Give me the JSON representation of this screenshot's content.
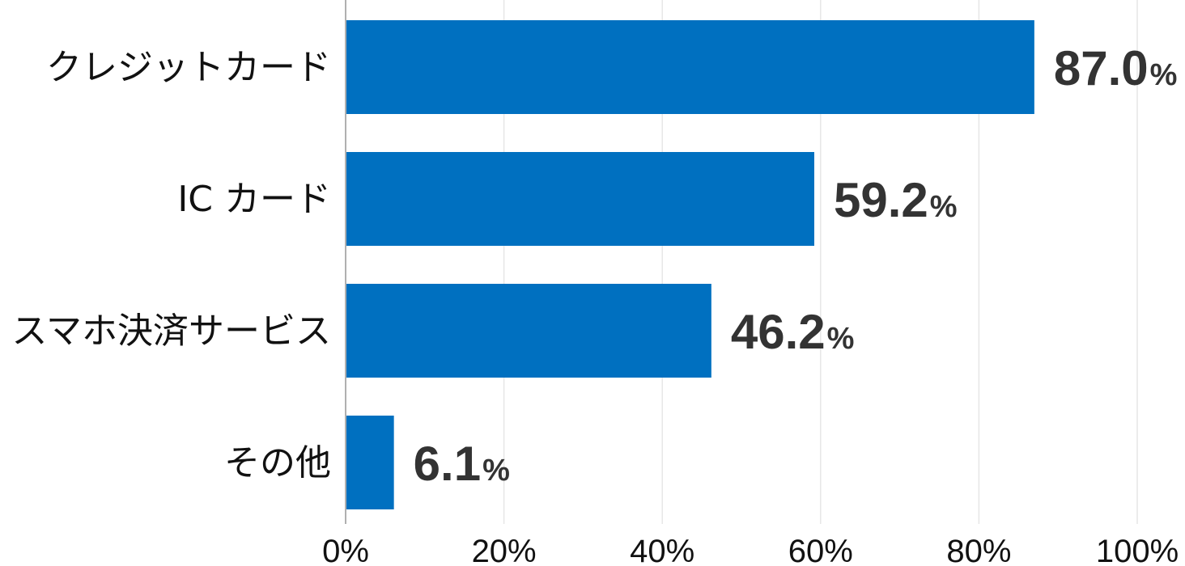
{
  "chart_data": {
    "type": "bar",
    "orientation": "horizontal",
    "categories": [
      "クレジットカード",
      "IC カード",
      "スマホ決済サービス",
      "その他"
    ],
    "values": [
      87.0,
      59.2,
      46.2,
      6.1
    ],
    "value_labels": [
      "87.0",
      "59.2",
      "46.2",
      "6.1"
    ],
    "value_unit": "%",
    "xlim": [
      0,
      100
    ],
    "x_ticks": [
      0,
      20,
      40,
      60,
      80,
      100
    ],
    "x_tick_labels": [
      "0%",
      "20%",
      "40%",
      "60%",
      "80%",
      "100%"
    ],
    "title": "",
    "xlabel": "",
    "ylabel": "",
    "grid": true,
    "legend": "none",
    "bar_color": "#0070c0",
    "grid_color": "#e6e6e6",
    "axis_color": "#b0b0b0",
    "value_label_color": "#333333"
  }
}
